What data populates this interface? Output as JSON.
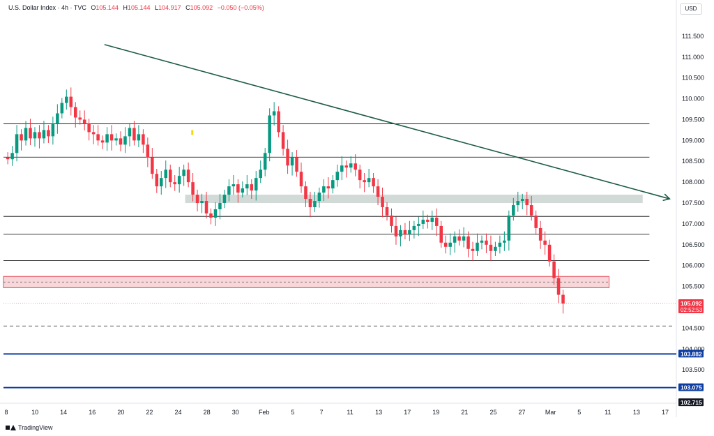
{
  "header": {
    "symbol": "U.S. Dollar Index · 4h · TVC",
    "o_label": "O",
    "o_value": "105.144",
    "h_label": "H",
    "h_value": "105.144",
    "l_label": "L",
    "l_value": "104.917",
    "c_label": "C",
    "c_value": "105.092",
    "change": "−0.050 (−0.05%)"
  },
  "currency": "USD",
  "brand": "TradingView",
  "colors": {
    "up": "#089981",
    "down": "#f23645",
    "trend": "#1d5c45",
    "zone_gray": "#b2c2bd",
    "zone_red": "#f8d2d5",
    "blue_line": "#0d3da0",
    "hline": "#000000"
  },
  "chart_data": {
    "type": "candlestick",
    "ylim": [
      102.7,
      112
    ],
    "y_ticks": [
      "111.500",
      "111.000",
      "110.500",
      "110.000",
      "109.500",
      "109.000",
      "108.500",
      "108.000",
      "107.500",
      "107.000",
      "106.500",
      "106.000",
      "105.500",
      "104.500",
      "104.000",
      "103.500"
    ],
    "x_ticks": [
      "8",
      "10",
      "14",
      "16",
      "20",
      "22",
      "24",
      "28",
      "30",
      "Feb",
      "5",
      "7",
      "11",
      "13",
      "17",
      "19",
      "21",
      "25",
      "27",
      "Mar",
      "5",
      "11",
      "13",
      "17"
    ],
    "price_badges": [
      {
        "label": "105.092",
        "sub": "02:52:53",
        "value": 105.092,
        "color": "#f23645"
      },
      {
        "label": "103.882",
        "value": 103.882,
        "color": "#0d3da0"
      },
      {
        "label": "103.075",
        "value": 103.075,
        "color": "#0d3da0"
      },
      {
        "label": "102.715",
        "value": 102.715,
        "color": "#131722"
      }
    ],
    "horizontal_lines": [
      109.4,
      108.6,
      107.18,
      106.75,
      106.12
    ],
    "dashed_line": 104.55,
    "blue_lines": [
      103.882,
      103.075
    ],
    "zones": [
      {
        "color": "gray",
        "x_from": 0.27,
        "x_to": 0.95,
        "y_top": 107.7,
        "y_bottom": 107.5
      },
      {
        "color": "red",
        "x_from": 0.0,
        "x_to": 0.9,
        "y_top": 105.74,
        "y_bottom": 105.47
      }
    ],
    "trendline": {
      "x_from": 0.15,
      "y_from": 111.3,
      "x_to": 0.99,
      "y_to": 107.6
    },
    "closes": [
      108.55,
      108.7,
      109.15,
      109.0,
      109.3,
      109.05,
      109.2,
      109.05,
      109.25,
      109.1,
      109.4,
      109.65,
      109.9,
      110.05,
      109.8,
      109.55,
      109.5,
      109.4,
      109.2,
      109.15,
      109.0,
      108.95,
      109.15,
      109.0,
      109.05,
      108.9,
      109.1,
      109.3,
      109.0,
      109.15,
      108.9,
      108.6,
      108.2,
      107.9,
      108.1,
      108.3,
      108.0,
      107.95,
      108.15,
      108.3,
      108.0,
      107.7,
      107.5,
      107.55,
      107.25,
      107.15,
      107.35,
      107.5,
      107.7,
      107.9,
      107.95,
      107.75,
      107.85,
      107.95,
      107.8,
      108.1,
      108.3,
      108.7,
      109.6,
      109.7,
      109.2,
      108.8,
      108.4,
      108.6,
      108.25,
      107.9,
      107.6,
      107.4,
      107.55,
      107.75,
      107.9,
      107.85,
      108.05,
      108.25,
      108.4,
      108.35,
      108.45,
      108.3,
      108.05,
      108.0,
      108.1,
      107.9,
      107.65,
      107.4,
      107.2,
      106.95,
      106.7,
      106.85,
      106.75,
      106.85,
      106.95,
      107.0,
      107.1,
      107.05,
      107.15,
      106.95,
      106.55,
      106.45,
      106.55,
      106.7,
      106.6,
      106.7,
      106.4,
      106.35,
      106.55,
      106.6,
      106.5,
      106.35,
      106.45,
      106.55,
      106.6,
      107.2,
      107.45,
      107.55,
      107.6,
      107.45,
      107.2,
      106.9,
      106.6,
      106.5,
      106.1,
      105.7,
      105.3,
      105.09
    ]
  }
}
